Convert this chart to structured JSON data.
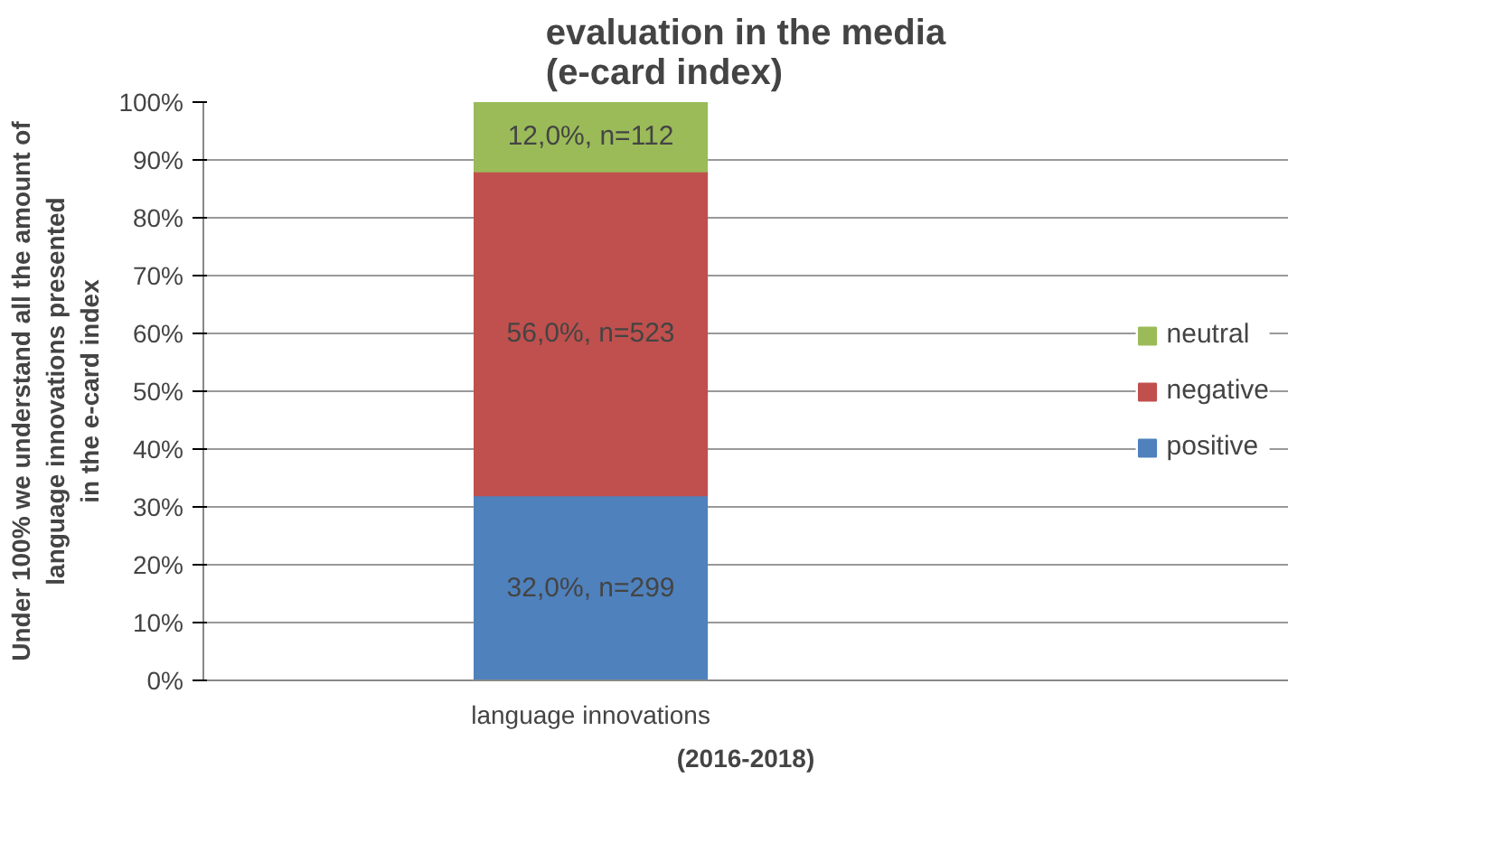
{
  "chart_data": {
    "type": "bar",
    "stacked": true,
    "title": "evaluation in the media\n(e-card index)",
    "xlabel": "(2016-2018)",
    "ylabel": "Under 100% we understand all the amount of\nlanguage innovations presented\nin the e-card index",
    "categories": [
      "language innovations"
    ],
    "series": [
      {
        "name": "positive",
        "color": "#4f81bd",
        "values": [
          32
        ],
        "value_labels": [
          "32,0%, n=299"
        ]
      },
      {
        "name": "negative",
        "color": "#c0504d",
        "values": [
          56
        ],
        "value_labels": [
          "56,0%, n=523"
        ]
      },
      {
        "name": "neutral",
        "color": "#9bbb59",
        "values": [
          12
        ],
        "value_labels": [
          "12,0%, n=112"
        ]
      }
    ],
    "ylim": [
      0,
      100
    ],
    "yticks": [
      {
        "value": 0,
        "label": "0%"
      },
      {
        "value": 10,
        "label": "10%"
      },
      {
        "value": 20,
        "label": "20%"
      },
      {
        "value": 30,
        "label": "30%"
      },
      {
        "value": 40,
        "label": "40%"
      },
      {
        "value": 50,
        "label": "50%"
      },
      {
        "value": 60,
        "label": "60%"
      },
      {
        "value": 70,
        "label": "70%"
      },
      {
        "value": 80,
        "label": "80%"
      },
      {
        "value": 90,
        "label": "90%"
      },
      {
        "value": 100,
        "label": "100%"
      }
    ],
    "grid": "y",
    "legend": "right"
  }
}
